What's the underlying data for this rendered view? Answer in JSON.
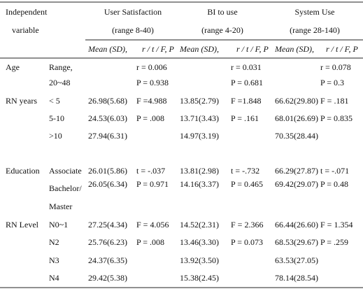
{
  "header": {
    "first_column": [
      "Independent",
      "variable"
    ],
    "groups": [
      {
        "title": "User Satisfaction",
        "range": "(range 8-40)"
      },
      {
        "title": "BI to use",
        "range": "(range 4-20)"
      },
      {
        "title": "System Use",
        "range": "(range 28-140)"
      }
    ],
    "subheaders": [
      "Mean (SD),",
      "r / t / F, P",
      "Mean (SD),",
      "r / t / F, P",
      "Mean (SD),",
      "r / t / F, P"
    ]
  },
  "table": {
    "rows": [
      [
        "Age",
        "Range,",
        null,
        "r = 0.006",
        null,
        "r = 0.031",
        null,
        "r = 0.078"
      ],
      [
        null,
        "20~48",
        null,
        "P = 0.938",
        null,
        "P = 0.681",
        null,
        "P = 0.3"
      ],
      [
        "RN years",
        "< 5",
        "26.98(5.68)",
        "F =4.988",
        "13.85(2.79)",
        "F =1.848",
        "66.62(29.80)",
        "F = .181"
      ],
      [
        null,
        "5-10",
        "24.53(6.03)",
        "P = .008",
        "13.71(3.43)",
        "P = .161",
        "68.01(26.69)",
        "P = 0.835"
      ],
      [
        null,
        ">10",
        "27.94(6.31)",
        null,
        "14.97(3.19)",
        null,
        "70.35(28.44)",
        null
      ],
      [
        "Education",
        "Associate",
        "26.01(5.86)",
        "t = -.037",
        "13.81(2.98)",
        "t = -.732",
        "66.29(27.87)",
        "t = -.071"
      ],
      [
        null,
        "Bachelor/",
        "26.05(6.34)",
        "P = 0.971",
        "14.16(3.37)",
        "P = 0.465",
        "69.42(29.07)",
        "P = 0.48"
      ],
      [
        null,
        "Master",
        null,
        null,
        null,
        null,
        null,
        null
      ],
      [
        "RN Level",
        "N0~1",
        "27.25(4.34)",
        "F = 4.056",
        "14.52(2.31)",
        "F = 2.366",
        "66.44(26.60)",
        "F = 1.354"
      ],
      [
        null,
        "N2",
        "25.76(6.23)",
        "P = .008",
        "13.46(3.30)",
        "P = 0.073",
        "68.53(29.67)",
        "P = .259"
      ],
      [
        null,
        "N3",
        "24.37(6.35)",
        null,
        "13.92(3.50)",
        null,
        "63.53(27.05)",
        null
      ],
      [
        null,
        "N4",
        "29.42(5.38)",
        null,
        "15.38(2.45)",
        null,
        "78.14(28.54)",
        null
      ]
    ]
  }
}
